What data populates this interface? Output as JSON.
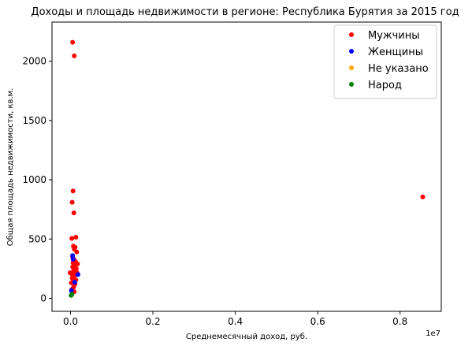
{
  "chart_data": {
    "type": "scatter",
    "title": "Доходы и площадь недвижимости в регионе: Республика Бурятия за 2015 год",
    "xlabel": "Среднемесячный доход, руб.",
    "ylabel": "Общая площадь недвижимости, кв.м.",
    "x_offset_label": "1e7",
    "xlim": [
      -450000,
      9000000
    ],
    "ylim": [
      -110,
      2330
    ],
    "x_ticks": [
      {
        "value": 0,
        "label": "0.0"
      },
      {
        "value": 2000000,
        "label": "0.2"
      },
      {
        "value": 4000000,
        "label": "0.4"
      },
      {
        "value": 6000000,
        "label": "0.6"
      },
      {
        "value": 8000000,
        "label": "0.8"
      }
    ],
    "y_ticks": [
      {
        "value": 0,
        "label": "0"
      },
      {
        "value": 500,
        "label": "500"
      },
      {
        "value": 1000,
        "label": "1000"
      },
      {
        "value": 1500,
        "label": "1500"
      },
      {
        "value": 2000,
        "label": "2000"
      }
    ],
    "grid": false,
    "legend_position": "top-right",
    "series": [
      {
        "name": "Мужчины",
        "color": "#ff0000",
        "points": [
          {
            "x": 50000,
            "y": 2160
          },
          {
            "x": 90000,
            "y": 2045
          },
          {
            "x": 60000,
            "y": 905
          },
          {
            "x": 40000,
            "y": 810
          },
          {
            "x": 80000,
            "y": 720
          },
          {
            "x": 8550000,
            "y": 855
          },
          {
            "x": 130000,
            "y": 515
          },
          {
            "x": 30000,
            "y": 505
          },
          {
            "x": 70000,
            "y": 440
          },
          {
            "x": 110000,
            "y": 430
          },
          {
            "x": 90000,
            "y": 415
          },
          {
            "x": 150000,
            "y": 390
          },
          {
            "x": 50000,
            "y": 350
          },
          {
            "x": 80000,
            "y": 330
          },
          {
            "x": 120000,
            "y": 310
          },
          {
            "x": 60000,
            "y": 300
          },
          {
            "x": 170000,
            "y": 290
          },
          {
            "x": 100000,
            "y": 280
          },
          {
            "x": 50000,
            "y": 265
          },
          {
            "x": 140000,
            "y": 250
          },
          {
            "x": 75000,
            "y": 235
          },
          {
            "x": 110000,
            "y": 225
          },
          {
            "x": -10000,
            "y": 215
          },
          {
            "x": 30000,
            "y": 205
          },
          {
            "x": 160000,
            "y": 215
          },
          {
            "x": 90000,
            "y": 190
          },
          {
            "x": 40000,
            "y": 170
          },
          {
            "x": 130000,
            "y": 155
          },
          {
            "x": 60000,
            "y": 140
          },
          {
            "x": 20000,
            "y": 130
          },
          {
            "x": 110000,
            "y": 120
          },
          {
            "x": 75000,
            "y": 95
          },
          {
            "x": 35000,
            "y": 75
          },
          {
            "x": 90000,
            "y": 55
          }
        ]
      },
      {
        "name": "Женщины",
        "color": "#0000ff",
        "points": [
          {
            "x": 50000,
            "y": 360
          },
          {
            "x": 60000,
            "y": 330
          },
          {
            "x": 180000,
            "y": 200
          },
          {
            "x": 100000,
            "y": 135
          },
          {
            "x": 20000,
            "y": 65
          }
        ]
      },
      {
        "name": "Не указано",
        "color": "#ffa500",
        "points": []
      },
      {
        "name": "Народ",
        "color": "#008000",
        "points": [
          {
            "x": 15000,
            "y": 25
          },
          {
            "x": 35000,
            "y": 35
          }
        ]
      }
    ]
  }
}
